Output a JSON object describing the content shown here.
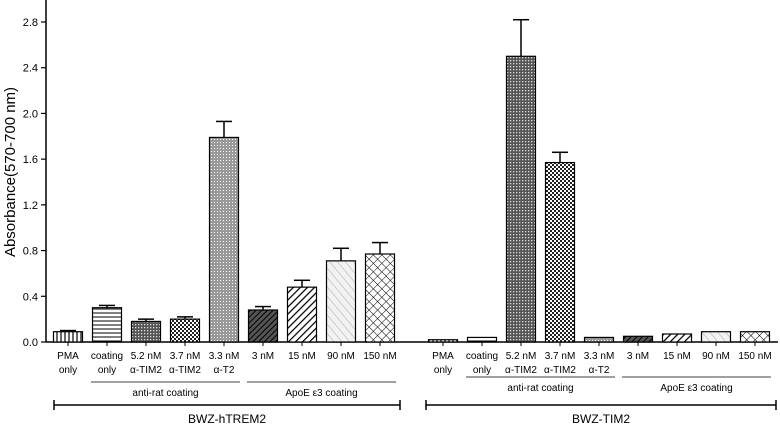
{
  "chart_data": {
    "type": "bar",
    "ylabel": "Absorbance(570-700 nm)",
    "ylim": [
      0,
      2.8
    ],
    "yticks": [
      "0.0",
      "0.4",
      "0.8",
      "1.2",
      "1.6",
      "2.0",
      "2.4",
      "2.8"
    ],
    "error_bars": true,
    "grid": false,
    "panels": [
      {
        "cell_label": "BWZ-hTREM2",
        "categories": [
          {
            "line1": "PMA",
            "line2": "only",
            "value": 0.09,
            "error": 0.01,
            "pattern": "vertical"
          },
          {
            "line1": "coating",
            "line2": "only",
            "value": 0.3,
            "error": 0.02,
            "pattern": "horizontal"
          },
          {
            "line1": "5.2 nM",
            "line2": "α-TIM2",
            "value": 0.18,
            "error": 0.02,
            "pattern": "dots"
          },
          {
            "line1": "3.7 nM",
            "line2": "α-TIM2",
            "value": 0.2,
            "error": 0.02,
            "pattern": "checker"
          },
          {
            "line1": "3.3 nM",
            "line2": "α-T2",
            "value": 1.79,
            "error": 0.14,
            "pattern": "fine-dots"
          },
          {
            "line1": "3 nM",
            "line2": "",
            "value": 0.28,
            "error": 0.03,
            "pattern": "diagonal-dense"
          },
          {
            "line1": "15 nM",
            "line2": "",
            "value": 0.48,
            "error": 0.06,
            "pattern": "diagonal"
          },
          {
            "line1": "90 nM",
            "line2": "",
            "value": 0.71,
            "error": 0.11,
            "pattern": "diagonal-light"
          },
          {
            "line1": "150 nM",
            "line2": "",
            "value": 0.77,
            "error": 0.1,
            "pattern": "crosshatch"
          }
        ],
        "group_labels": [
          "anti-rat coating",
          "ApoE ε3 coating"
        ]
      },
      {
        "cell_label": "BWZ-TIM2",
        "categories": [
          {
            "line1": "PMA",
            "line2": "only",
            "value": 0.02,
            "error": 0.0,
            "pattern": "vertical"
          },
          {
            "line1": "coating",
            "line2": "only",
            "value": 0.04,
            "error": 0.0,
            "pattern": "horizontal"
          },
          {
            "line1": "5.2 nM",
            "line2": "α-TIM2",
            "value": 2.5,
            "error": 0.32,
            "pattern": "dots"
          },
          {
            "line1": "3.7 nM",
            "line2": "α-TIM2",
            "value": 1.57,
            "error": 0.09,
            "pattern": "checker"
          },
          {
            "line1": "3.3 nM",
            "line2": "α-T2",
            "value": 0.04,
            "error": 0.0,
            "pattern": "fine-dots"
          },
          {
            "line1": "3 nM",
            "line2": "",
            "value": 0.05,
            "error": 0.0,
            "pattern": "diagonal-dense"
          },
          {
            "line1": "15 nM",
            "line2": "",
            "value": 0.07,
            "error": 0.0,
            "pattern": "diagonal"
          },
          {
            "line1": "90 nM",
            "line2": "",
            "value": 0.09,
            "error": 0.0,
            "pattern": "diagonal-light"
          },
          {
            "line1": "150 nM",
            "line2": "",
            "value": 0.09,
            "error": 0.0,
            "pattern": "crosshatch"
          }
        ],
        "group_labels": [
          "anti-rat coating",
          "ApoE ε3 coating"
        ]
      }
    ]
  }
}
